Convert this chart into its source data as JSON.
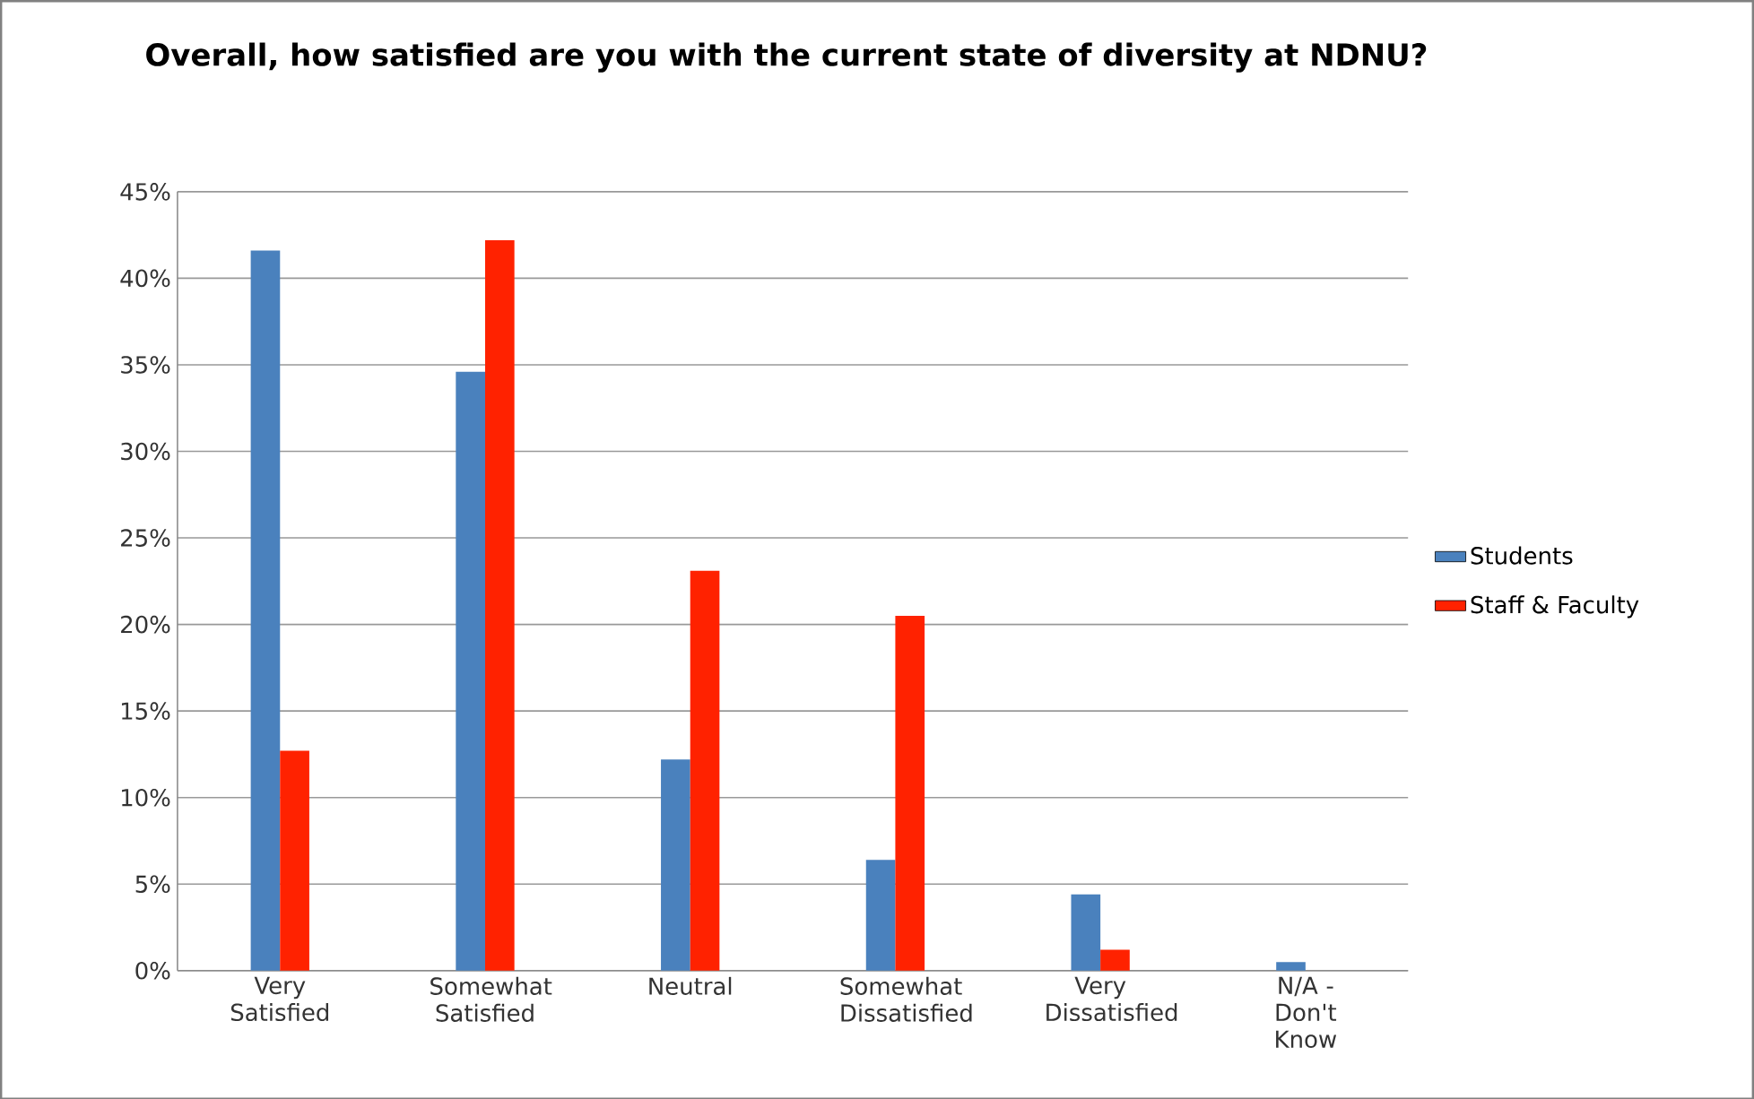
{
  "chart_data": {
    "type": "bar",
    "title": "Overall, how satisfied are you with the current state of diversity at NDNU?",
    "categories": [
      "Very Satisfied",
      "Somewhat Satisfied",
      "Neutral",
      "Somewhat Dissatisfied",
      "Very Dissatisfied",
      "N/A - Don't Know"
    ],
    "series": [
      {
        "name": "Students",
        "color": "#4a81bd",
        "values": [
          41.6,
          34.6,
          12.2,
          6.4,
          4.4,
          0.5
        ]
      },
      {
        "name": "Staff & Faculty",
        "color": "#ff2200",
        "values": [
          12.7,
          42.2,
          23.1,
          20.5,
          1.2,
          0
        ]
      }
    ],
    "ylim": [
      0,
      45
    ],
    "yticks": [
      {
        "value": 0,
        "label": "0%"
      },
      {
        "value": 5,
        "label": "5%"
      },
      {
        "value": 10,
        "label": "10%"
      },
      {
        "value": 15,
        "label": "15%"
      },
      {
        "value": 20,
        "label": "20%"
      },
      {
        "value": 25,
        "label": "25%"
      },
      {
        "value": 30,
        "label": "30%"
      },
      {
        "value": 35,
        "label": "35%"
      },
      {
        "value": 40,
        "label": "40%"
      },
      {
        "value": 45,
        "label": "45%"
      }
    ],
    "grid": "y",
    "legend": "right"
  }
}
